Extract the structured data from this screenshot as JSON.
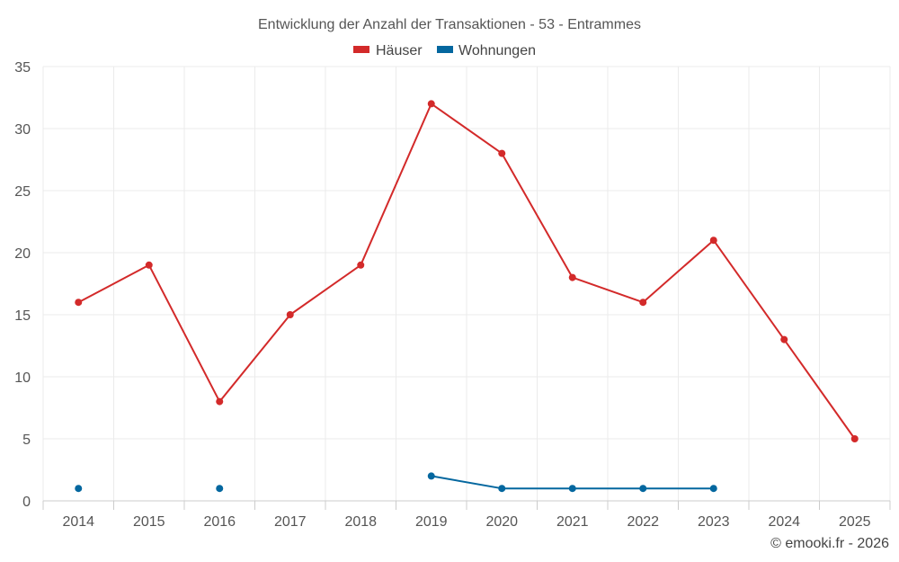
{
  "chart_data": {
    "type": "line",
    "title": "Entwicklung der Anzahl der Transaktionen - 53 - Entrammes",
    "categories": [
      "2014",
      "2015",
      "2016",
      "2017",
      "2018",
      "2019",
      "2020",
      "2021",
      "2022",
      "2023",
      "2024",
      "2025"
    ],
    "series": [
      {
        "name": "Häuser",
        "color": "#d32a2a",
        "values": [
          16,
          19,
          8,
          15,
          19,
          32,
          28,
          18,
          16,
          21,
          13,
          5
        ]
      },
      {
        "name": "Wohnungen",
        "color": "#04679f",
        "values": [
          1,
          null,
          1,
          null,
          null,
          2,
          1,
          1,
          1,
          1,
          null,
          null
        ]
      }
    ],
    "ylim": [
      0,
      35
    ],
    "yticks": [
      0,
      5,
      10,
      15,
      20,
      25,
      30,
      35
    ],
    "grid": true,
    "legend": "top-center",
    "credit": "© emooki.fr - 2026"
  }
}
